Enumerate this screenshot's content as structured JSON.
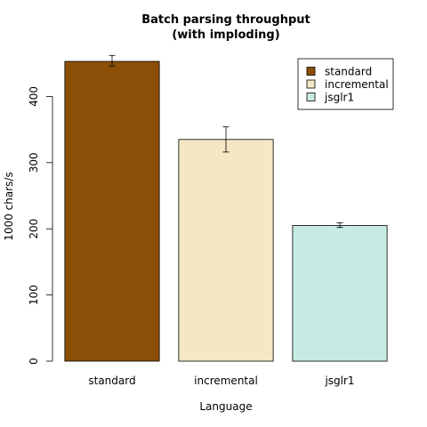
{
  "chart_data": {
    "type": "bar",
    "title_line1": "Batch parsing throughput",
    "title_line2": "(with imploding)",
    "xlabel": "Language",
    "ylabel": "1000 chars/s",
    "categories": [
      "standard",
      "incremental",
      "jsglr1"
    ],
    "values": [
      453,
      335,
      205
    ],
    "error_low": [
      446,
      316,
      202
    ],
    "error_high": [
      462,
      354,
      209
    ],
    "colors": [
      "#8B4F08",
      "#F5E6C4",
      "#C8EAE4"
    ],
    "ylim": [
      0,
      460
    ],
    "yticks": [
      0,
      100,
      200,
      300,
      400
    ],
    "legend": {
      "position": "top-right",
      "entries": [
        "standard",
        "incremental",
        "jsglr1"
      ]
    },
    "grid": false
  }
}
